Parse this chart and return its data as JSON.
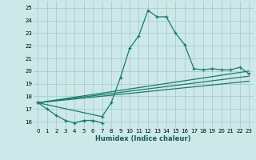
{
  "xlabel": "Humidex (Indice chaleur)",
  "background_color": "#cce8e8",
  "grid_color": "#b0d0d0",
  "line_color": "#1a7a6e",
  "x_values": [
    0,
    1,
    2,
    3,
    4,
    5,
    6,
    7,
    8,
    9,
    10,
    11,
    12,
    13,
    14,
    15,
    16,
    17,
    18,
    19,
    20,
    21,
    22,
    23
  ],
  "curve1": [
    17.5,
    17.0,
    16.5,
    16.1,
    15.9,
    16.1,
    16.1,
    15.9,
    null,
    null,
    null,
    null,
    null,
    null,
    null,
    null,
    null,
    null,
    null,
    null,
    null,
    null,
    null,
    null
  ],
  "curve2": [
    17.5,
    null,
    null,
    null,
    null,
    null,
    null,
    16.4,
    17.5,
    19.5,
    21.8,
    22.8,
    24.8,
    24.3,
    24.3,
    23.0,
    22.1,
    20.2,
    20.1,
    20.2,
    20.1,
    20.1,
    20.3,
    19.8
  ],
  "line1_x": [
    0,
    23
  ],
  "line1_y": [
    17.5,
    19.2
  ],
  "line2_x": [
    0,
    23
  ],
  "line2_y": [
    17.5,
    19.6
  ],
  "line3_x": [
    0,
    23
  ],
  "line3_y": [
    17.5,
    20.0
  ],
  "ylim": [
    15.5,
    25.5
  ],
  "xlim": [
    -0.5,
    23.5
  ],
  "yticks": [
    16,
    17,
    18,
    19,
    20,
    21,
    22,
    23,
    24,
    25
  ],
  "xtick_labels": [
    "0",
    "1",
    "2",
    "3",
    "4",
    "5",
    "6",
    "7",
    "8",
    "9",
    "10",
    "11",
    "12",
    "13",
    "14",
    "15",
    "16",
    "17",
    "18",
    "19",
    "20",
    "21",
    "22",
    "23"
  ]
}
